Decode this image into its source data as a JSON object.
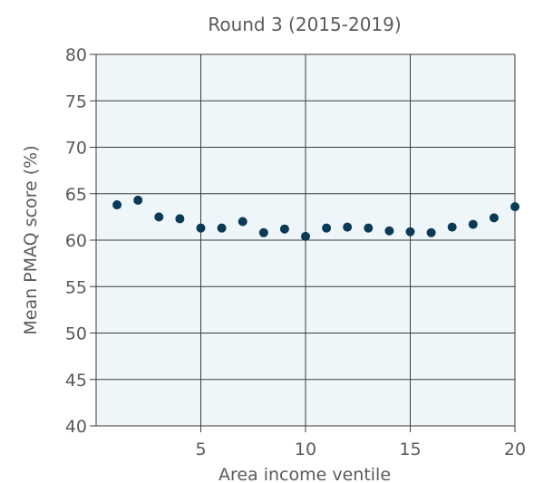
{
  "chart_data": {
    "type": "scatter",
    "title": "Round 3 (2015-2019)",
    "xlabel": "Area income ventile",
    "ylabel": "Mean PMAQ score (%)",
    "xlim": [
      0,
      20
    ],
    "ylim": [
      40,
      80
    ],
    "x_ticks": [
      5,
      10,
      15,
      20
    ],
    "y_ticks": [
      40,
      45,
      50,
      55,
      60,
      65,
      70,
      75,
      80
    ],
    "grid": true,
    "colors": {
      "marker": "#0b3a57",
      "plot_background": "#eef6fa",
      "grid": "#3c3c3c",
      "text": "#5a5a5a"
    },
    "series": [
      {
        "x": [
          1,
          2,
          3,
          4,
          5,
          6,
          7,
          8,
          9,
          10,
          11,
          12,
          13,
          14,
          15,
          16,
          17,
          18,
          19,
          20
        ],
        "values": [
          63.8,
          64.3,
          62.5,
          62.3,
          61.3,
          61.3,
          62.0,
          60.8,
          61.2,
          60.4,
          61.3,
          61.4,
          61.3,
          61.0,
          60.9,
          60.8,
          61.4,
          61.7,
          62.4,
          63.6
        ]
      }
    ]
  }
}
